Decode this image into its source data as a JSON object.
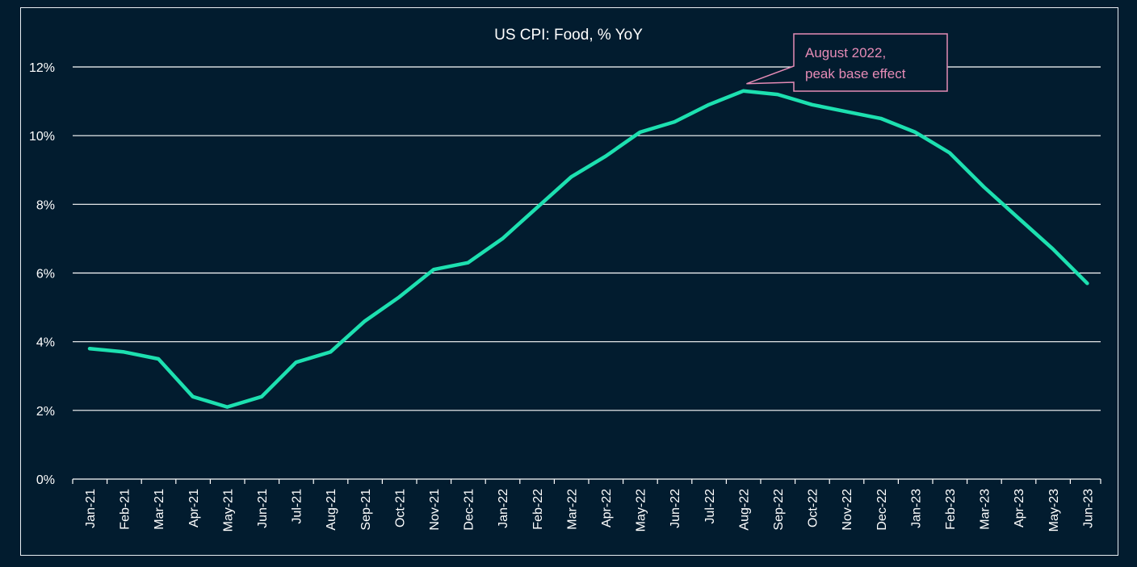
{
  "chart_data": {
    "type": "line",
    "title": "US CPI: Food, % YoY",
    "xlabel": "",
    "ylabel": "",
    "ylim": [
      0,
      12
    ],
    "yticks": [
      0,
      2,
      4,
      6,
      8,
      10,
      12
    ],
    "ytick_labels": [
      "0%",
      "2%",
      "4%",
      "6%",
      "8%",
      "10%",
      "12%"
    ],
    "grid": true,
    "categories": [
      "Jan-21",
      "Feb-21",
      "Mar-21",
      "Apr-21",
      "May-21",
      "Jun-21",
      "Jul-21",
      "Aug-21",
      "Sep-21",
      "Oct-21",
      "Nov-21",
      "Dec-21",
      "Jan-22",
      "Feb-22",
      "Mar-22",
      "Apr-22",
      "May-22",
      "Jun-22",
      "Jul-22",
      "Aug-22",
      "Sep-22",
      "Oct-22",
      "Nov-22",
      "Dec-22",
      "Jan-23",
      "Feb-23",
      "Mar-23",
      "Apr-23",
      "May-23",
      "Jun-23"
    ],
    "series": [
      {
        "name": "US CPI: Food, % YoY",
        "values": [
          3.8,
          3.7,
          3.5,
          2.4,
          2.1,
          2.4,
          3.4,
          3.7,
          4.6,
          5.3,
          6.1,
          6.3,
          7.0,
          7.9,
          8.8,
          9.4,
          10.1,
          10.4,
          10.9,
          11.3,
          11.2,
          10.9,
          10.7,
          10.5,
          10.1,
          9.5,
          8.5,
          7.6,
          6.7,
          5.7
        ]
      }
    ],
    "annotation": {
      "lines": [
        "August 2022,",
        "peak base effect"
      ],
      "target_category": "Aug-22",
      "target_value": 11.3
    }
  },
  "colors": {
    "background": "#021c2f",
    "line": "#1de0b0",
    "grid": "#ffffff",
    "text": "#ffffff",
    "annotation": "#e58bb6"
  }
}
